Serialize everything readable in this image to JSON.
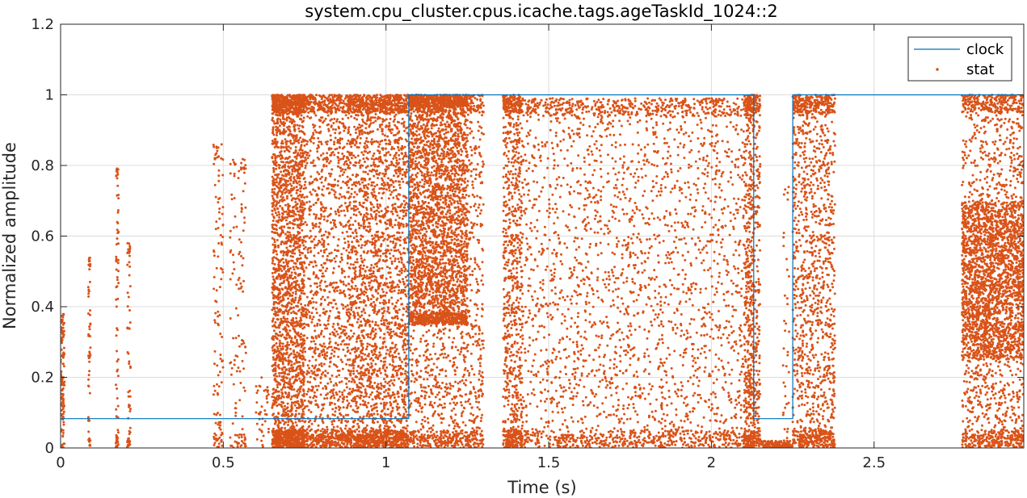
{
  "chart_data": {
    "type": "scatter",
    "title": "system.cpu_cluster.cpus.icache.tags.ageTaskId_1024::2",
    "xlabel": "Time (s)",
    "ylabel": "Normalized amplitude",
    "xlim": [
      0,
      2.96
    ],
    "ylim": [
      0,
      1.2
    ],
    "xticks": [
      0,
      0.5,
      1,
      1.5,
      2,
      2.5
    ],
    "xtick_labels": [
      "0",
      "0.5",
      "1",
      "1.5",
      "2",
      "2.5"
    ],
    "yticks": [
      0,
      0.2,
      0.4,
      0.6,
      0.8,
      1,
      1.2
    ],
    "ytick_labels": [
      "0",
      "0.2",
      "0.4",
      "0.6",
      "0.8",
      "1",
      "1.2"
    ],
    "grid": true,
    "legend_placement": "top-right",
    "series": [
      {
        "name": "clock",
        "style": "line",
        "color": "#0072BD",
        "x": [
          0,
          0.65,
          0.65,
          1.07,
          1.07,
          2.13,
          2.13,
          2.25,
          2.25,
          2.96
        ],
        "y": [
          0.083,
          0.083,
          0.083,
          0.083,
          1,
          1,
          0.083,
          0.083,
          1,
          1
        ]
      },
      {
        "name": "stat",
        "style": "markers",
        "color": "#D95319",
        "clusters": [
          {
            "x": [
              0.0,
              0.012
            ],
            "y": [
              0.0,
              0.38
            ],
            "n": 120
          },
          {
            "x": [
              0.085,
              0.092
            ],
            "y": [
              0.0,
              0.54
            ],
            "n": 60
          },
          {
            "x": [
              0.17,
              0.178
            ],
            "y": [
              0.0,
              0.8
            ],
            "n": 80
          },
          {
            "x": [
              0.205,
              0.215
            ],
            "y": [
              0.0,
              0.58
            ],
            "n": 60
          },
          {
            "x": [
              0.47,
              0.5
            ],
            "y": [
              0.0,
              0.86
            ],
            "n": 120
          },
          {
            "x": [
              0.52,
              0.57
            ],
            "y": [
              0.0,
              0.82
            ],
            "n": 130
          },
          {
            "x": [
              0.6,
              0.64
            ],
            "y": [
              0.0,
              0.2
            ],
            "n": 40
          },
          {
            "x": [
              0.65,
              0.75
            ],
            "y": [
              0.0,
              1.0
            ],
            "n": 2600
          },
          {
            "x": [
              0.75,
              0.88
            ],
            "y": [
              0.0,
              1.0
            ],
            "n": 1300
          },
          {
            "x": [
              0.88,
              1.07
            ],
            "y": [
              0.0,
              1.0
            ],
            "n": 2900
          },
          {
            "x": [
              1.07,
              1.25
            ],
            "y": [
              0.35,
              1.0
            ],
            "n": 2500
          },
          {
            "x": [
              1.07,
              1.3
            ],
            "y": [
              0.0,
              1.0
            ],
            "n": 1700
          },
          {
            "x": [
              1.36,
              1.42
            ],
            "y": [
              0.0,
              1.0
            ],
            "n": 900
          },
          {
            "x": [
              1.42,
              2.13
            ],
            "y": [
              0.0,
              0.99
            ],
            "n": 3500
          },
          {
            "x": [
              2.1,
              2.15
            ],
            "y": [
              0.0,
              1.0
            ],
            "n": 700
          },
          {
            "x": [
              2.15,
              2.25
            ],
            "y": [
              0.0,
              0.02
            ],
            "n": 120
          },
          {
            "x": [
              2.22,
              2.24
            ],
            "y": [
              0.0,
              0.74
            ],
            "n": 40
          },
          {
            "x": [
              2.25,
              2.38
            ],
            "y": [
              0.0,
              1.0
            ],
            "n": 1400
          },
          {
            "x": [
              2.77,
              2.96
            ],
            "y": [
              0.0,
              1.0
            ],
            "n": 1500
          },
          {
            "x": [
              2.77,
              2.96
            ],
            "y": [
              0.25,
              0.7
            ],
            "n": 1800
          }
        ]
      }
    ]
  }
}
